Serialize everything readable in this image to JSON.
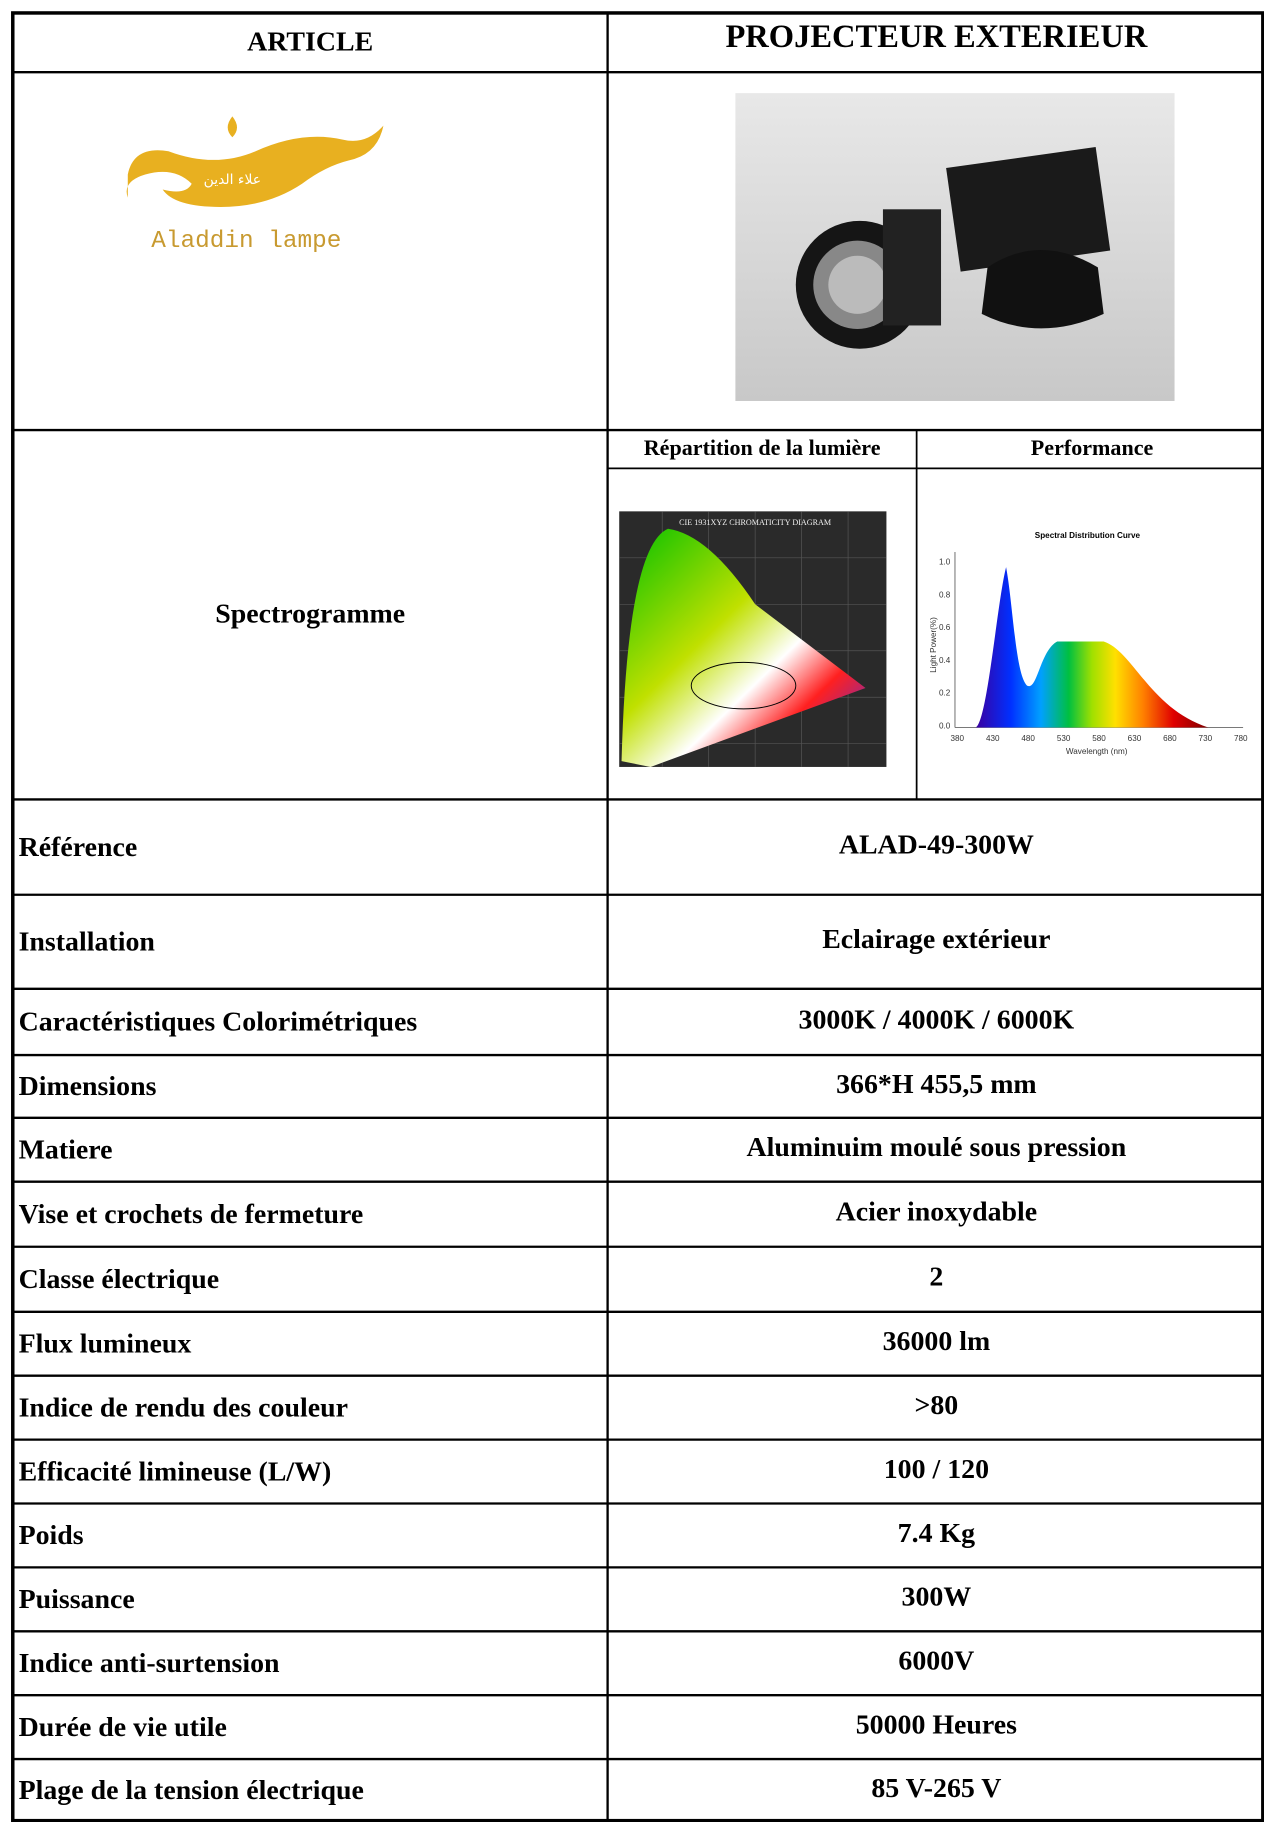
{
  "header": {
    "article": "ARTICLE",
    "title": "PROJECTEUR EXTERIEUR"
  },
  "logo": {
    "arabic": "علاء الدين",
    "name": "Aladdin lampe"
  },
  "spectrogramme": {
    "label": "Spectrogramme",
    "light_distribution": "Répartition de la lumière",
    "performance": "Performance",
    "cie_title": "CIE 1931XYZ CHROMATICITY DIAGRAM",
    "curve": {
      "title": "Spectral Distribution Curve",
      "y_label": "Light Power(%)",
      "x_label": "Wavelength (nm)",
      "yticks": [
        "0.0",
        "0.2",
        "0.4",
        "0.6",
        "0.8",
        "1.0"
      ],
      "xticks": [
        380,
        430,
        480,
        530,
        580,
        630,
        680,
        730,
        780
      ]
    }
  },
  "table": {
    "rows": [
      [
        "Référence",
        "ALAD-49-300W"
      ],
      [
        "Installation",
        "Eclairage extérieur"
      ],
      [
        "Caractéristiques Colorimétriques",
        "3000K / 4000K / 6000K"
      ],
      [
        "Dimensions",
        "366*H 455,5 mm"
      ],
      [
        "Matiere",
        "Aluminuim moulé sous pression"
      ],
      [
        "Vise et crochets de fermeture",
        "Acier inoxydable"
      ],
      [
        "Classe électrique",
        "2"
      ],
      [
        "Flux lumineux",
        "36000 lm"
      ],
      [
        "Indice de rendu des couleur",
        ">80"
      ],
      [
        "Efficacité limineuse (L/W)",
        "100 / 120"
      ],
      [
        "Poids",
        "7.4 Kg"
      ],
      [
        "Puissance",
        "300W"
      ],
      [
        "Indice anti-surtension",
        "6000V"
      ],
      [
        "Durée de vie utile",
        "50000 Heures"
      ],
      [
        "Plage de la tension électrique",
        "85 V-265 V"
      ]
    ]
  }
}
